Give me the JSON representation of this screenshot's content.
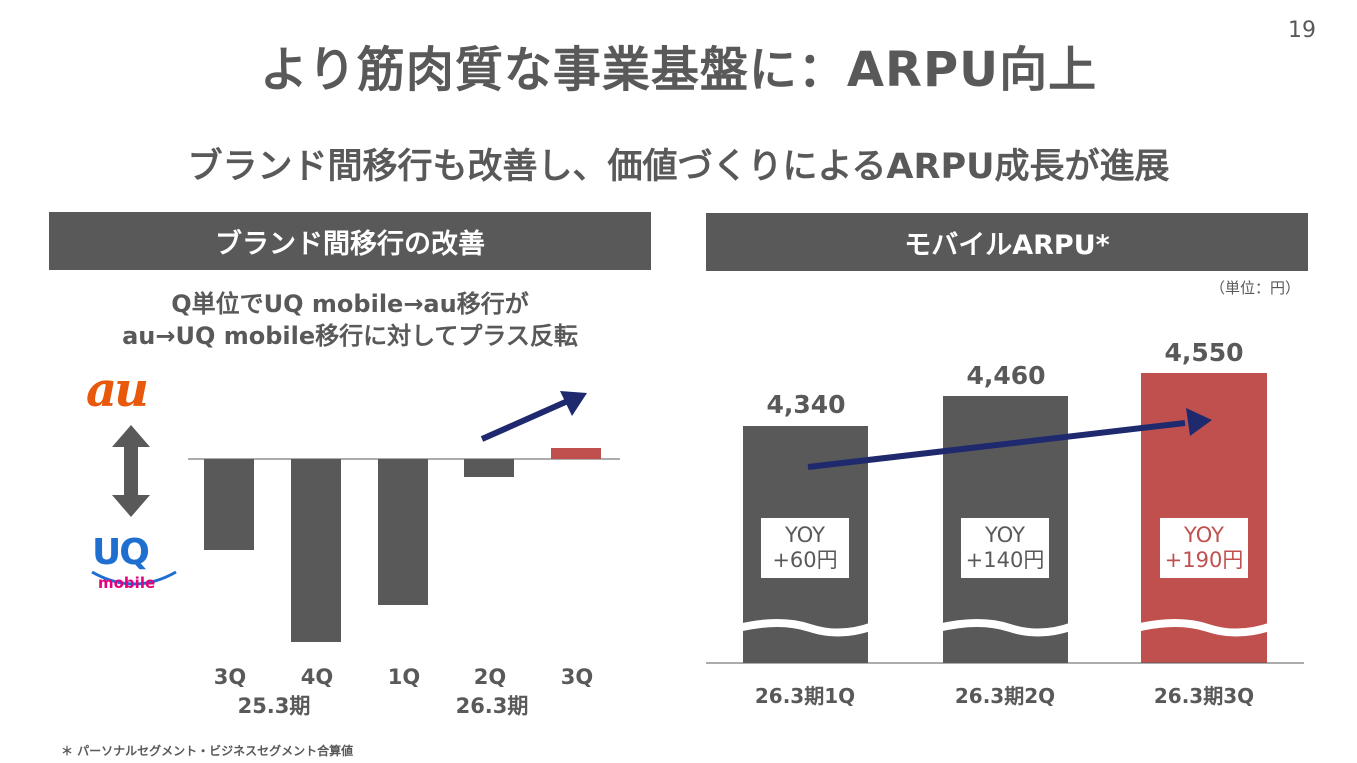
{
  "page_number": "19",
  "title": "より筋肉質な事業基盤に：ARPU向上",
  "subtitle": "ブランド間移行も改善し、価値づくりによるARPU成長が進展",
  "left_panel": {
    "header": "ブランド間移行の改善",
    "desc_line1": "Q単位でUQ mobile→au移行が",
    "desc_line2": "au→UQ mobile移行に対してプラス反転",
    "logo_au": "au",
    "logo_uq": "UQ",
    "logo_uq_sub": "mobile",
    "quarters": [
      "3Q",
      "4Q",
      "1Q",
      "2Q",
      "3Q"
    ],
    "period_labels": [
      "25.3期",
      "26.3期"
    ],
    "bar_values": [
      -0.5,
      -1.0,
      -0.8,
      -0.1,
      0.06
    ],
    "colors": {
      "neg": "#595959",
      "pos": "#c0504d",
      "arrow": "#1f2a6e"
    }
  },
  "right_panel": {
    "header": "モバイルARPU*",
    "unit": "（単位：円）",
    "categories": [
      "26.3期1Q",
      "26.3期2Q",
      "26.3期3Q"
    ],
    "values": [
      "4,340",
      "4,460",
      "4,550"
    ],
    "yoy": [
      {
        "label": "YOY",
        "value": "+60円"
      },
      {
        "label": "YOY",
        "value": "+140円"
      },
      {
        "label": "YOY",
        "value": "+190円"
      }
    ],
    "colors": {
      "bar": "#595959",
      "highlight": "#c0504d",
      "arrow": "#1f2a6e"
    }
  },
  "footnote": "＊ パーソナルセグメント・ビジネスセグメント合算値"
}
